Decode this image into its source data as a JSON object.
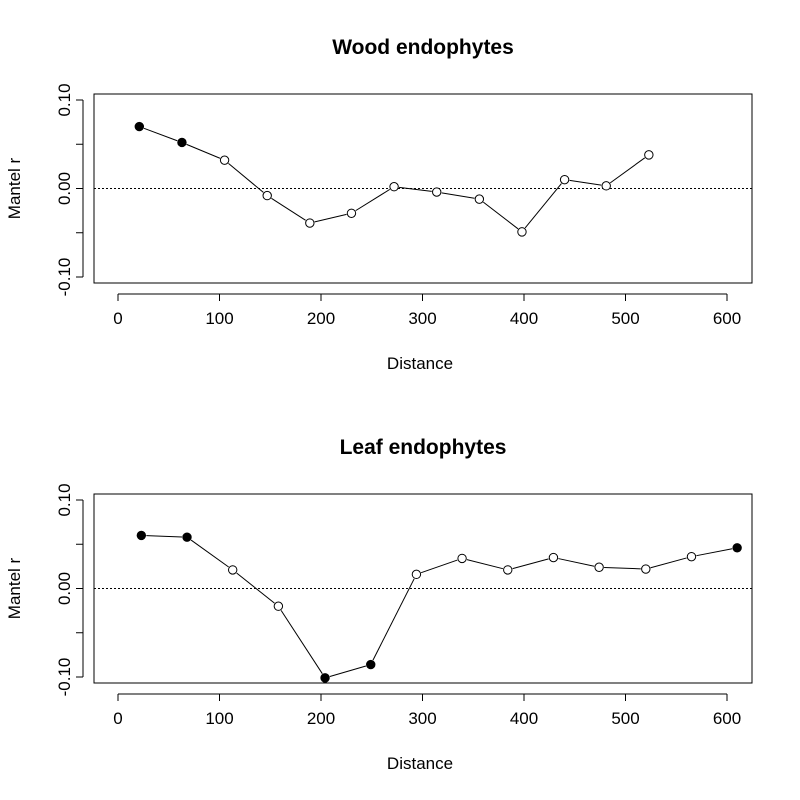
{
  "chart_data": [
    {
      "type": "line",
      "title": "Wood endophytes",
      "xlabel": "Distance",
      "ylabel": "Mantel r",
      "xlim": [
        0,
        600
      ],
      "ylim": [
        -0.1,
        0.1
      ],
      "x_ticks": [
        0,
        100,
        200,
        300,
        400,
        500,
        600
      ],
      "x_tick_labels": [
        "0",
        "100",
        "200",
        "300",
        "400",
        "500",
        "600"
      ],
      "y_ticks": [
        -0.1,
        0.0,
        0.1
      ],
      "y_tick_labels": [
        "-0.10",
        "0.00",
        "0.10"
      ],
      "reference_line": 0,
      "x": [
        21,
        63,
        105,
        147,
        189,
        230,
        272,
        314,
        356,
        398,
        440,
        481,
        523
      ],
      "y": [
        0.07,
        0.052,
        0.032,
        -0.008,
        -0.039,
        -0.028,
        0.002,
        -0.004,
        -0.012,
        -0.049,
        0.01,
        0.003,
        0.038
      ],
      "filled": [
        true,
        true,
        false,
        false,
        false,
        false,
        false,
        false,
        false,
        false,
        false,
        false,
        false
      ]
    },
    {
      "type": "line",
      "title": "Leaf endophytes",
      "xlabel": "Distance",
      "ylabel": "Mantel r",
      "xlim": [
        0,
        600
      ],
      "ylim": [
        -0.1,
        0.1
      ],
      "x_ticks": [
        0,
        100,
        200,
        300,
        400,
        500,
        600
      ],
      "x_tick_labels": [
        "0",
        "100",
        "200",
        "300",
        "400",
        "500",
        "600"
      ],
      "y_ticks": [
        -0.1,
        0.0,
        0.1
      ],
      "y_tick_labels": [
        "-0.10",
        "0.00",
        "0.10"
      ],
      "reference_line": 0,
      "x": [
        23,
        68,
        113,
        158,
        204,
        249,
        294,
        339,
        384,
        429,
        474,
        520,
        565,
        610
      ],
      "y": [
        0.06,
        0.058,
        0.021,
        -0.02,
        -0.101,
        -0.086,
        0.016,
        0.034,
        0.021,
        0.035,
        0.024,
        0.022,
        0.036,
        0.046
      ],
      "filled": [
        true,
        true,
        false,
        false,
        true,
        true,
        false,
        false,
        false,
        false,
        false,
        false,
        false,
        true
      ]
    }
  ]
}
